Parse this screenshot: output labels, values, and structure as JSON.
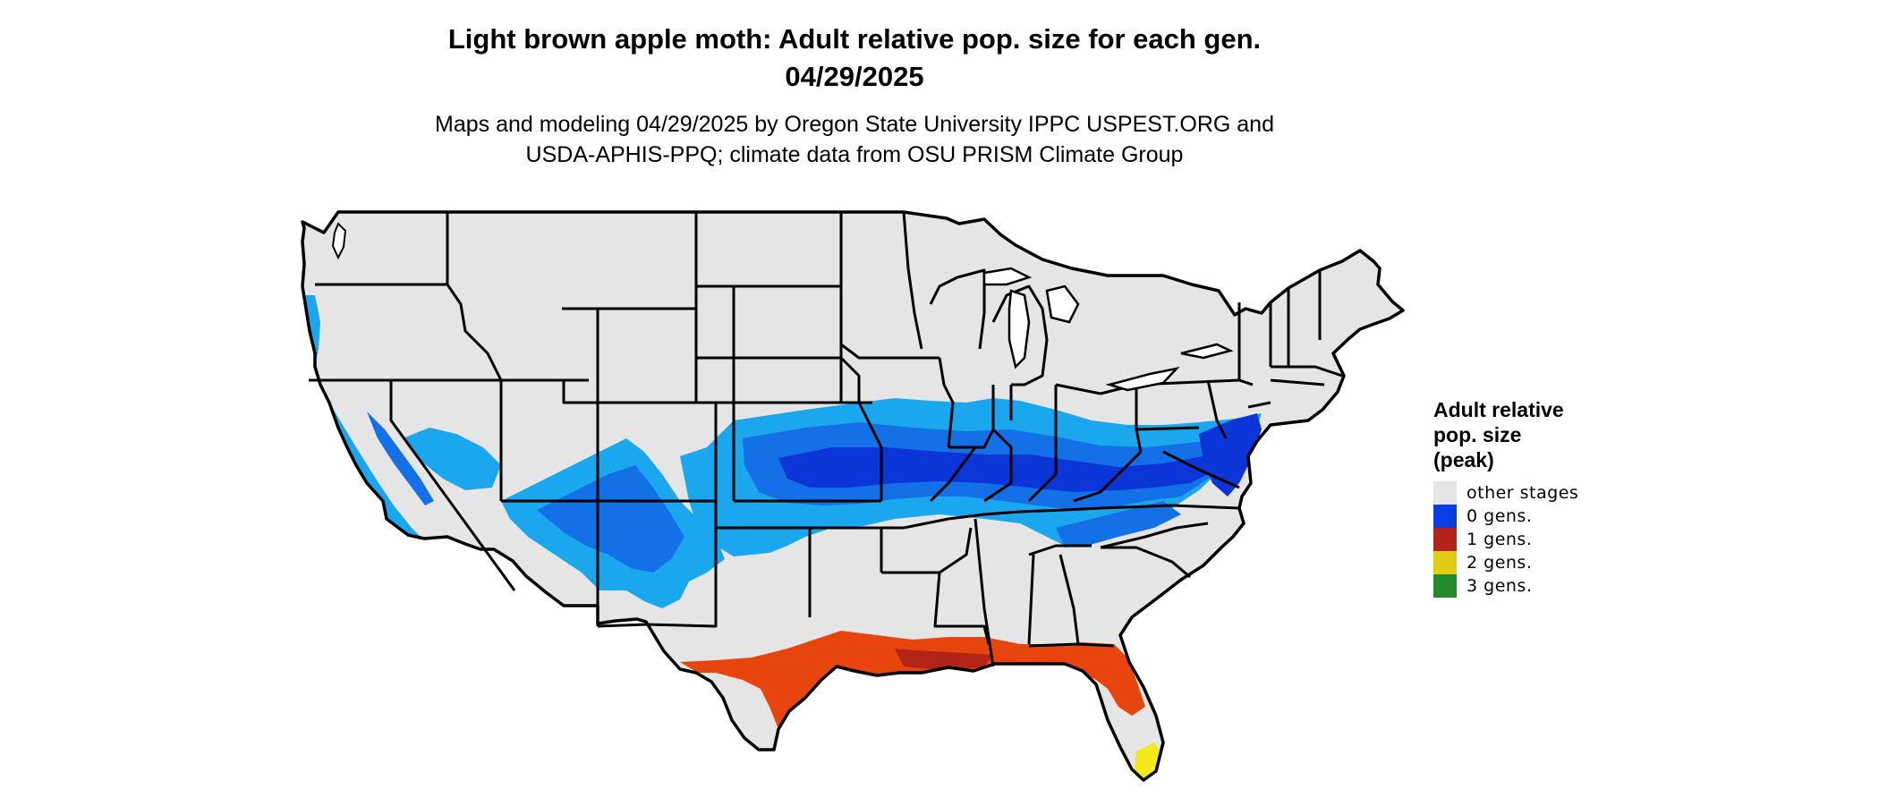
{
  "title_line1": "Light brown apple moth: Adult relative pop. size for each gen.",
  "title_line2": "04/29/2025",
  "subtitle_line1": "Maps and modeling 04/29/2025 by Oregon State University IPPC USPEST.ORG and",
  "subtitle_line2": "USDA-APHIS-PPQ; climate data from OSU PRISM Climate Group",
  "legend": {
    "title_lines": [
      "Adult relative",
      "pop. size",
      "(peak)"
    ],
    "items": [
      {
        "label": "other stages",
        "color": "#e5e5e5"
      },
      {
        "label": "0 gens.",
        "color": "#0a3ee0"
      },
      {
        "label": "1 gens.",
        "color": "#b32418"
      },
      {
        "label": "2 gens.",
        "color": "#e0cc12"
      },
      {
        "label": "3 gens.",
        "color": "#238b2a"
      }
    ]
  },
  "map_colors": {
    "land": "#e5e5e5",
    "border": "#000000",
    "blue_light": "#1aa7ee",
    "blue_mid": "#1470e6",
    "blue_dark": "#0b35d6",
    "red_orange": "#e8440e",
    "red_dark": "#b32418",
    "yellow": "#f2e81a"
  }
}
